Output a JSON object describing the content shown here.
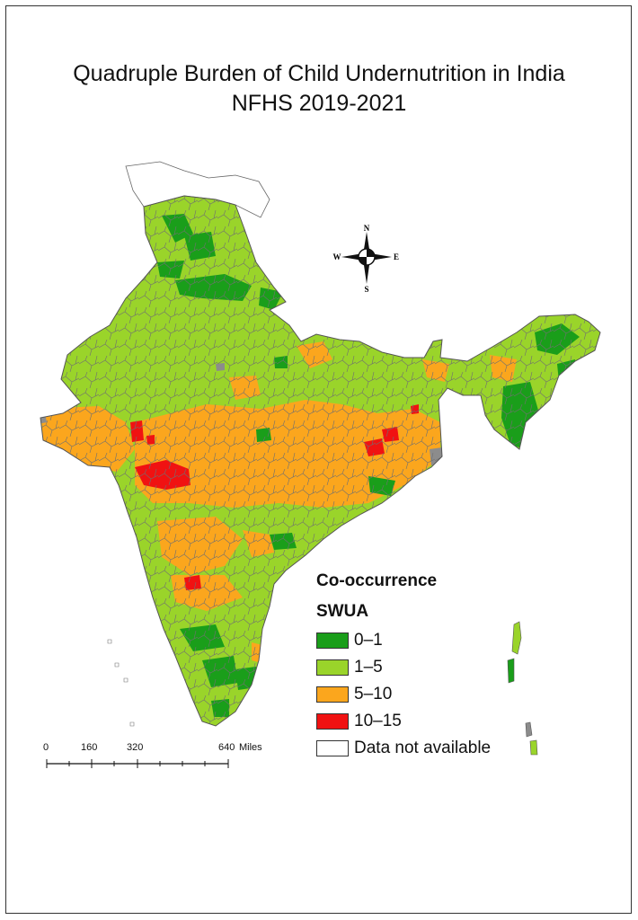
{
  "title": {
    "line1": "Quadruple Burden of Child Undernutrition in India",
    "line2": "NFHS 2019-2021"
  },
  "compass": {
    "n": "N",
    "s": "S",
    "e": "E",
    "w": "W"
  },
  "legend": {
    "heading1": "Co-occurrence",
    "heading2": "SWUA",
    "items": [
      {
        "label": "0–1",
        "color": "#1a9e1a"
      },
      {
        "label": "1–5",
        "color": "#9ad42a"
      },
      {
        "label": "5–10",
        "color": "#fba61d"
      },
      {
        "label": "10–15",
        "color": "#f01212"
      },
      {
        "label": "Data not available",
        "color": "#ffffff"
      }
    ]
  },
  "scale_bar": {
    "ticks": [
      "0",
      "160",
      "320",
      "640"
    ],
    "unit": "Miles"
  },
  "colors": {
    "class_0_1": "#1a9e1a",
    "class_1_5": "#9ad42a",
    "class_5_10": "#fba61d",
    "class_10_15": "#f01212",
    "no_data": "#ffffff",
    "border": "#666666"
  }
}
